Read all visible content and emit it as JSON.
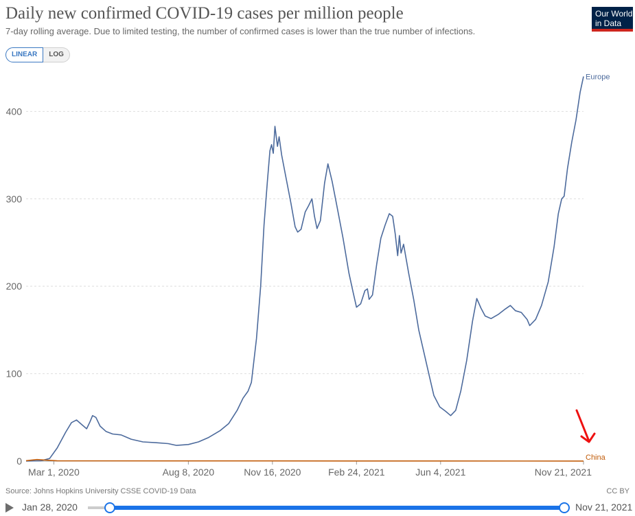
{
  "header": {
    "title": "Daily new confirmed COVID-19 cases per million people",
    "subtitle": "7-day rolling average. Due to limited testing, the number of confirmed cases is lower than the true number of infections."
  },
  "logo": {
    "line1": "Our World",
    "line2": "in Data"
  },
  "scale_toggle": {
    "linear": "LINEAR",
    "log": "LOG",
    "selected": "LINEAR"
  },
  "footer": {
    "source": "Source: Johns Hopkins University CSSE COVID-19 Data",
    "license": "CC BY"
  },
  "timeline": {
    "start_label": "Jan 28, 2020",
    "end_label": "Nov 21, 2021",
    "selection": [
      0,
      1
    ]
  },
  "colors": {
    "europe": "#4c6a9c",
    "china": "#c15c0a",
    "annotation_arrow": "#ee1111",
    "slider": "#1a73e8"
  },
  "chart_data": {
    "type": "line",
    "x_axis": {
      "start": "2020-01-28",
      "end": "2021-11-21",
      "ticks": [
        "Mar 1, 2020",
        "Aug 8, 2020",
        "Nov 16, 2020",
        "Feb 24, 2021",
        "Jun 4, 2021",
        "Nov 21, 2021"
      ]
    },
    "y_axis": {
      "ticks": [
        0,
        100,
        200,
        300,
        400
      ],
      "ylim": [
        0,
        445
      ]
    },
    "grid": "horizontal dashed",
    "series": [
      {
        "name": "Europe",
        "points": [
          [
            "2020-01-28",
            0
          ],
          [
            "2020-02-15",
            0.5
          ],
          [
            "2020-02-25",
            3
          ],
          [
            "2020-03-05",
            15
          ],
          [
            "2020-03-15",
            33
          ],
          [
            "2020-03-22",
            44
          ],
          [
            "2020-03-28",
            47
          ],
          [
            "2020-04-03",
            42
          ],
          [
            "2020-04-09",
            37
          ],
          [
            "2020-04-13",
            45
          ],
          [
            "2020-04-16",
            52
          ],
          [
            "2020-04-20",
            50
          ],
          [
            "2020-04-25",
            40
          ],
          [
            "2020-05-02",
            34
          ],
          [
            "2020-05-10",
            31
          ],
          [
            "2020-05-20",
            30
          ],
          [
            "2020-06-01",
            25
          ],
          [
            "2020-06-15",
            22
          ],
          [
            "2020-07-01",
            21
          ],
          [
            "2020-07-15",
            20
          ],
          [
            "2020-07-25",
            18
          ],
          [
            "2020-08-08",
            19
          ],
          [
            "2020-08-20",
            22
          ],
          [
            "2020-09-01",
            27
          ],
          [
            "2020-09-15",
            35
          ],
          [
            "2020-09-25",
            43
          ],
          [
            "2020-10-05",
            58
          ],
          [
            "2020-10-12",
            72
          ],
          [
            "2020-10-18",
            80
          ],
          [
            "2020-10-22",
            90
          ],
          [
            "2020-10-28",
            140
          ],
          [
            "2020-11-02",
            200
          ],
          [
            "2020-11-06",
            270
          ],
          [
            "2020-11-10",
            320
          ],
          [
            "2020-11-13",
            355
          ],
          [
            "2020-11-15",
            362
          ],
          [
            "2020-11-17",
            352
          ],
          [
            "2020-11-19",
            383
          ],
          [
            "2020-11-22",
            360
          ],
          [
            "2020-11-24",
            371
          ],
          [
            "2020-11-27",
            350
          ],
          [
            "2020-12-02",
            325
          ],
          [
            "2020-12-08",
            295
          ],
          [
            "2020-12-13",
            268
          ],
          [
            "2020-12-16",
            262
          ],
          [
            "2020-12-20",
            265
          ],
          [
            "2020-12-25",
            285
          ],
          [
            "2020-12-29",
            292
          ],
          [
            "2021-01-02",
            300
          ],
          [
            "2021-01-05",
            280
          ],
          [
            "2021-01-08",
            266
          ],
          [
            "2021-01-12",
            275
          ],
          [
            "2021-01-17",
            318
          ],
          [
            "2021-01-21",
            340
          ],
          [
            "2021-01-26",
            320
          ],
          [
            "2021-02-01",
            290
          ],
          [
            "2021-02-08",
            255
          ],
          [
            "2021-02-15",
            215
          ],
          [
            "2021-02-20",
            193
          ],
          [
            "2021-02-24",
            176
          ],
          [
            "2021-03-01",
            180
          ],
          [
            "2021-03-06",
            195
          ],
          [
            "2021-03-09",
            197
          ],
          [
            "2021-03-11",
            185
          ],
          [
            "2021-03-15",
            190
          ],
          [
            "2021-03-20",
            225
          ],
          [
            "2021-03-25",
            255
          ],
          [
            "2021-03-30",
            270
          ],
          [
            "2021-04-04",
            283
          ],
          [
            "2021-04-08",
            280
          ],
          [
            "2021-04-11",
            260
          ],
          [
            "2021-04-14",
            235
          ],
          [
            "2021-04-16",
            258
          ],
          [
            "2021-04-18",
            238
          ],
          [
            "2021-04-21",
            248
          ],
          [
            "2021-04-27",
            215
          ],
          [
            "2021-05-03",
            185
          ],
          [
            "2021-05-09",
            150
          ],
          [
            "2021-05-15",
            125
          ],
          [
            "2021-05-21",
            100
          ],
          [
            "2021-05-27",
            75
          ],
          [
            "2021-06-03",
            62
          ],
          [
            "2021-06-10",
            57
          ],
          [
            "2021-06-16",
            52
          ],
          [
            "2021-06-22",
            58
          ],
          [
            "2021-06-28",
            80
          ],
          [
            "2021-07-05",
            115
          ],
          [
            "2021-07-12",
            160
          ],
          [
            "2021-07-17",
            186
          ],
          [
            "2021-07-22",
            175
          ],
          [
            "2021-07-27",
            166
          ],
          [
            "2021-08-03",
            163
          ],
          [
            "2021-08-12",
            168
          ],
          [
            "2021-08-20",
            174
          ],
          [
            "2021-08-26",
            178
          ],
          [
            "2021-09-01",
            172
          ],
          [
            "2021-09-08",
            170
          ],
          [
            "2021-09-15",
            162
          ],
          [
            "2021-09-18",
            155
          ],
          [
            "2021-09-25",
            162
          ],
          [
            "2021-10-02",
            178
          ],
          [
            "2021-10-10",
            205
          ],
          [
            "2021-10-17",
            245
          ],
          [
            "2021-10-22",
            283
          ],
          [
            "2021-10-26",
            300
          ],
          [
            "2021-10-29",
            303
          ],
          [
            "2021-11-02",
            335
          ],
          [
            "2021-11-07",
            365
          ],
          [
            "2021-11-12",
            390
          ],
          [
            "2021-11-17",
            422
          ],
          [
            "2021-11-21",
            440
          ]
        ]
      },
      {
        "name": "China",
        "points": [
          [
            "2020-01-28",
            0.5
          ],
          [
            "2020-02-10",
            1.8
          ],
          [
            "2020-02-20",
            1.2
          ],
          [
            "2020-03-05",
            0.3
          ],
          [
            "2021-11-21",
            0.1
          ]
        ]
      }
    ]
  }
}
